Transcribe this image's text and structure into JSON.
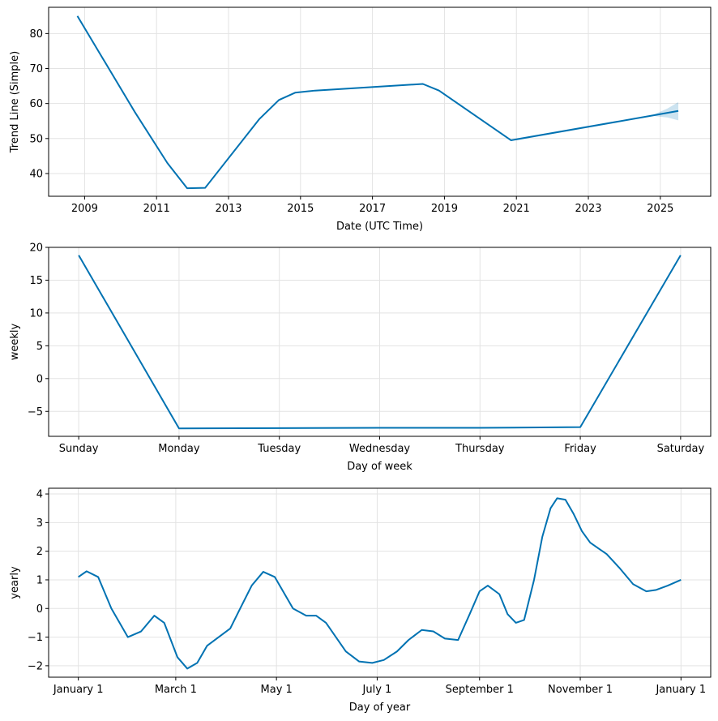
{
  "chart_data": [
    {
      "type": "line",
      "xlabel": "Date (UTC Time)",
      "ylabel": "Trend Line (Simple)",
      "x_ticks": [
        "2009",
        "2011",
        "2013",
        "2015",
        "2017",
        "2019",
        "2021",
        "2023",
        "2025"
      ],
      "x_tick_values": [
        2009.0,
        2011.0,
        2013.0,
        2015.0,
        2017.0,
        2019.0,
        2021.0,
        2023.0,
        2025.0
      ],
      "y_ticks": [
        "40",
        "50",
        "60",
        "70",
        "80"
      ],
      "y_tick_values": [
        40,
        50,
        60,
        70,
        80
      ],
      "xlim": [
        2008.0,
        2026.4
      ],
      "ylim": [
        33.5,
        87.5
      ],
      "grid": true,
      "series": [
        {
          "x": [
            2008.8,
            2010.4,
            2011.3,
            2011.85,
            2012.35,
            2013.85,
            2014.4,
            2014.85,
            2015.4,
            2018.4,
            2018.85,
            2020.85,
            2024.85,
            2025.5
          ],
          "values": [
            85.0,
            57.5,
            43.0,
            35.8,
            35.9,
            55.5,
            61.0,
            63.1,
            63.7,
            65.6,
            63.7,
            49.5,
            56.7,
            57.9
          ]
        }
      ],
      "uncertainty_band": {
        "x": [
          2024.85,
          2025.2,
          2025.5
        ],
        "upper": [
          57.0,
          58.6,
          60.4
        ],
        "lower": [
          56.4,
          56.0,
          55.2
        ]
      }
    },
    {
      "type": "line",
      "xlabel": "Day of week",
      "ylabel": "weekly",
      "categories": [
        "Sunday",
        "Monday",
        "Tuesday",
        "Wednesday",
        "Thursday",
        "Friday",
        "Saturday"
      ],
      "y_ticks": [
        "−5",
        "0",
        "5",
        "10",
        "15",
        "20"
      ],
      "y_tick_values": [
        -5,
        0,
        5,
        10,
        15,
        20
      ],
      "ylim": [
        -8.8,
        20.0
      ],
      "grid": true,
      "series": [
        {
          "values": [
            18.8,
            -7.6,
            -7.55,
            -7.5,
            -7.5,
            -7.4,
            18.8
          ]
        }
      ]
    },
    {
      "type": "line",
      "xlabel": "Day of year",
      "ylabel": "yearly",
      "x_ticks": [
        "January 1",
        "March 1",
        "May 1",
        "July 1",
        "September 1",
        "November 1",
        "January 1"
      ],
      "x_tick_values": [
        0,
        59,
        120,
        181,
        243,
        304,
        365
      ],
      "y_ticks": [
        "−2",
        "−1",
        "0",
        "1",
        "2",
        "3",
        "4"
      ],
      "y_tick_values": [
        -2,
        -1,
        0,
        1,
        2,
        3,
        4
      ],
      "xlim": [
        -18,
        383
      ],
      "ylim": [
        -2.4,
        4.2
      ],
      "grid": true,
      "series": [
        {
          "x": [
            0,
            5,
            12,
            20,
            30,
            38,
            46,
            52,
            60,
            66,
            72,
            78,
            85,
            92,
            98,
            105,
            112,
            119,
            124,
            130,
            138,
            144,
            150,
            156,
            162,
            170,
            178,
            185,
            193,
            200,
            208,
            215,
            222,
            230,
            237,
            243,
            248,
            255,
            260,
            265,
            270,
            276,
            281,
            286,
            290,
            295,
            300,
            305,
            310,
            315,
            320,
            328,
            336,
            344,
            350,
            357,
            365
          ],
          "values": [
            1.1,
            1.3,
            1.1,
            0.0,
            -1.0,
            -0.8,
            -0.25,
            -0.5,
            -1.7,
            -2.1,
            -1.9,
            -1.3,
            -1.0,
            -0.7,
            0.0,
            0.8,
            1.28,
            1.1,
            0.6,
            0.0,
            -0.25,
            -0.25,
            -0.5,
            -1.0,
            -1.5,
            -1.85,
            -1.9,
            -1.8,
            -1.5,
            -1.1,
            -0.75,
            -0.8,
            -1.05,
            -1.1,
            -0.2,
            0.6,
            0.8,
            0.5,
            -0.2,
            -0.5,
            -0.4,
            1.0,
            2.5,
            3.5,
            3.85,
            3.8,
            3.3,
            2.7,
            2.3,
            2.1,
            1.9,
            1.4,
            0.85,
            0.6,
            0.65,
            0.8,
            1.0
          ]
        }
      ]
    }
  ]
}
